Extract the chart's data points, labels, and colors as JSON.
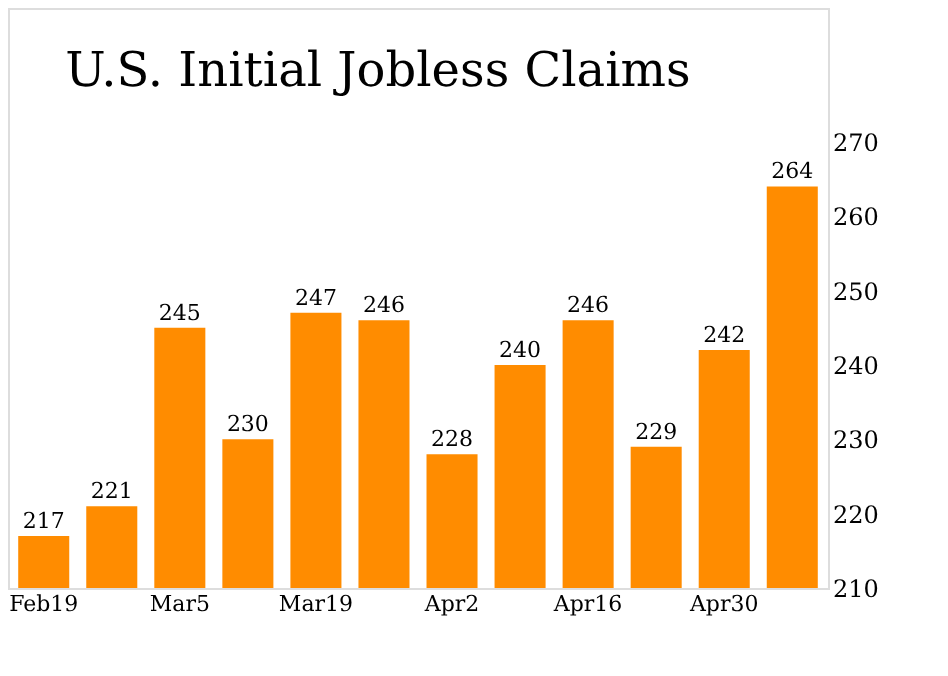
{
  "chart_data": {
    "type": "bar",
    "title": "U.S. Initial Jobless Claims",
    "categories": [
      "Feb19",
      null,
      "Mar5",
      null,
      "Mar19",
      null,
      "Apr2",
      null,
      "Apr16",
      null,
      "Apr30",
      null
    ],
    "values": [
      217,
      221,
      245,
      230,
      247,
      246,
      228,
      240,
      246,
      229,
      242,
      264
    ],
    "color": "#ff8c00",
    "ylim": [
      210,
      288
    ],
    "yticks": [
      210,
      220,
      230,
      240,
      250,
      260,
      270
    ],
    "data_labels": true,
    "grid": false
  }
}
